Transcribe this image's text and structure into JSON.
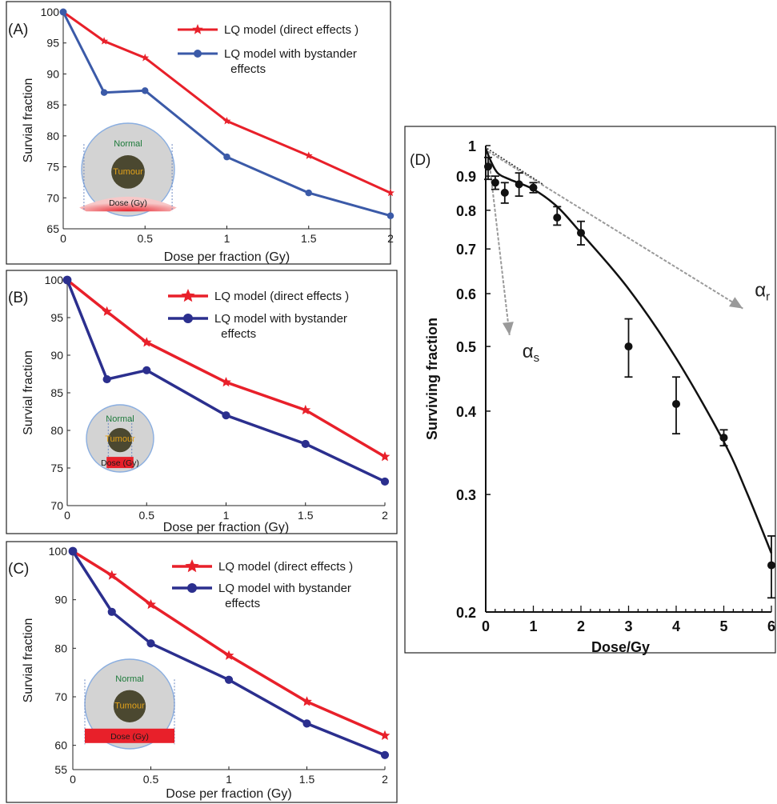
{
  "chart_data": [
    {
      "panel_label": "(A)",
      "type": "line",
      "xlabel": "Dose per fraction (Gy)",
      "ylabel": "Survial fraction",
      "xlim": [
        0,
        2
      ],
      "ylim": [
        65,
        100
      ],
      "xticks": [
        0,
        0.5,
        1,
        1.5,
        2
      ],
      "xtick_labels": [
        "0",
        "0.5",
        "1",
        "1.5",
        "2"
      ],
      "yticks": [
        65,
        70,
        75,
        80,
        85,
        90,
        95,
        100
      ],
      "ytick_labels": [
        "65",
        "70",
        "75",
        "80",
        "85",
        "90",
        "95",
        "100"
      ],
      "legend": "top-right",
      "series": [
        {
          "name": "LQ model  (direct effects )",
          "color": "#e8202a",
          "marker": "star",
          "x": [
            0,
            0.25,
            0.5,
            1,
            1.5,
            2
          ],
          "y": [
            100,
            95.3,
            92.6,
            82.4,
            76.8,
            70.8
          ]
        },
        {
          "name": "LQ model with bystander effects",
          "color": "#3b5aa8",
          "marker": "circle",
          "x": [
            0,
            0.25,
            0.5,
            1,
            1.5,
            2
          ],
          "y": [
            100,
            87.0,
            87.3,
            76.6,
            70.8,
            67.1
          ]
        }
      ],
      "inset": {
        "normal": "Normal",
        "tumour": "Tumour",
        "dose": "Dose (Gy)",
        "style": "arc"
      }
    },
    {
      "panel_label": "(B)",
      "type": "line",
      "xlabel": "Dose per fraction (Gy)",
      "ylabel": "Survial fraction",
      "xlim": [
        0,
        2
      ],
      "ylim": [
        70,
        100
      ],
      "xticks": [
        0,
        0.5,
        1,
        1.5,
        2
      ],
      "xtick_labels": [
        "0",
        "0.5",
        "1",
        "1.5",
        "2"
      ],
      "yticks": [
        70,
        75,
        80,
        85,
        90,
        95,
        100
      ],
      "ytick_labels": [
        "70",
        "75",
        "80",
        "85",
        "90",
        "95",
        "100"
      ],
      "legend": "top-right",
      "series": [
        {
          "name": "LQ model  (direct effects )",
          "color": "#e8202a",
          "marker": "star",
          "x": [
            0,
            0.25,
            0.5,
            1,
            1.5,
            2
          ],
          "y": [
            100,
            95.8,
            91.7,
            86.4,
            82.7,
            76.5
          ]
        },
        {
          "name": "LQ model with bystander effects",
          "color": "#2b2f8e",
          "marker": "circle",
          "x": [
            0,
            0.25,
            0.5,
            1,
            1.5,
            2
          ],
          "y": [
            100,
            86.8,
            88.0,
            82.0,
            78.2,
            73.2
          ]
        }
      ],
      "inset": {
        "normal": "Normal",
        "tumour": "Tumour",
        "dose": "Dose (Gy)",
        "style": "narrow"
      }
    },
    {
      "panel_label": "(C)",
      "type": "line",
      "xlabel": "Dose per fraction (Gy)",
      "ylabel": "Survial fraction",
      "xlim": [
        0,
        2
      ],
      "ylim": [
        55,
        100
      ],
      "xticks": [
        0,
        0.5,
        1,
        1.5,
        2
      ],
      "xtick_labels": [
        "0",
        "0.5",
        "1",
        "1.5",
        "2"
      ],
      "yticks": [
        55,
        60,
        70,
        80,
        90,
        100
      ],
      "ytick_labels": [
        "55",
        "60",
        "70",
        "80",
        "90",
        "100"
      ],
      "legend": "top-right",
      "series": [
        {
          "name": "LQ model  (direct effects )",
          "color": "#e8202a",
          "marker": "star",
          "x": [
            0,
            0.25,
            0.5,
            1,
            1.5,
            2
          ],
          "y": [
            100,
            95.0,
            89.0,
            78.5,
            69.0,
            62.0
          ]
        },
        {
          "name": "LQ model with bystander effects",
          "color": "#2b2f8e",
          "marker": "circle",
          "x": [
            0,
            0.25,
            0.5,
            1,
            1.5,
            2
          ],
          "y": [
            100,
            87.5,
            81.0,
            73.5,
            64.5,
            58.0
          ]
        }
      ],
      "inset": {
        "normal": "Normal",
        "tumour": "Tumour",
        "dose": "Dose (Gy)",
        "style": "wide"
      }
    },
    {
      "panel_label": "(D)",
      "type": "scatter",
      "xlabel": "Dose/Gy",
      "ylabel": "Surviving fraction",
      "xlim": [
        0,
        6
      ],
      "ylim": [
        0.2,
        1
      ],
      "yscale": "log",
      "xticks": [
        0,
        1,
        2,
        3,
        4,
        5,
        6
      ],
      "xtick_labels": [
        "0",
        "1",
        "2",
        "3",
        "4",
        "5",
        "6"
      ],
      "yticks": [
        0.2,
        0.3,
        0.4,
        0.5,
        0.6,
        0.7,
        0.8,
        0.9,
        1
      ],
      "ytick_labels": [
        "0.2",
        "0.3",
        "0.4",
        "0.5",
        "0.6",
        "0.7",
        "0.8",
        "0.9",
        "1"
      ],
      "points": [
        {
          "x": 0.05,
          "y": 0.93,
          "lo": 0.89,
          "hi": 0.96
        },
        {
          "x": 0.2,
          "y": 0.88,
          "lo": 0.86,
          "hi": 0.9
        },
        {
          "x": 0.4,
          "y": 0.85,
          "lo": 0.82,
          "hi": 0.88
        },
        {
          "x": 0.7,
          "y": 0.875,
          "lo": 0.84,
          "hi": 0.91
        },
        {
          "x": 1.0,
          "y": 0.865,
          "lo": 0.85,
          "hi": 0.88
        },
        {
          "x": 1.5,
          "y": 0.78,
          "lo": 0.76,
          "hi": 0.81
        },
        {
          "x": 2.0,
          "y": 0.74,
          "lo": 0.71,
          "hi": 0.77
        },
        {
          "x": 3.0,
          "y": 0.5,
          "lo": 0.45,
          "hi": 0.55
        },
        {
          "x": 4.0,
          "y": 0.41,
          "lo": 0.37,
          "hi": 0.45
        },
        {
          "x": 5.0,
          "y": 0.365,
          "lo": 0.355,
          "hi": 0.375
        },
        {
          "x": 6.0,
          "y": 0.235,
          "lo": 0.21,
          "hi": 0.26
        }
      ],
      "fit_curve": {
        "x": [
          0,
          0.1,
          0.25,
          0.5,
          1,
          1.5,
          2,
          3,
          4,
          5,
          5.5,
          6
        ],
        "y": [
          0.99,
          0.95,
          0.91,
          0.89,
          0.86,
          0.81,
          0.74,
          0.61,
          0.48,
          0.36,
          0.3,
          0.245
        ]
      },
      "alpha_s": {
        "label": "α",
        "sub": "s",
        "from": [
          0.05,
          0.98
        ],
        "to": [
          0.5,
          0.52
        ]
      },
      "alpha_r": {
        "label": "α",
        "sub": "r",
        "from": [
          0.05,
          0.98
        ],
        "to": [
          5.4,
          0.57
        ]
      }
    }
  ]
}
